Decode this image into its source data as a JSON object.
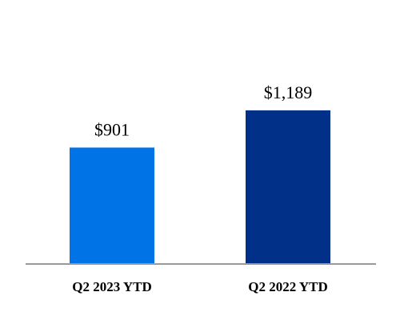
{
  "chart_data": {
    "type": "bar",
    "title": "",
    "xlabel": "",
    "ylabel": "",
    "categories": [
      "Q2 2023 YTD",
      "Q2 2022 YTD"
    ],
    "values": [
      901,
      1189
    ],
    "value_labels": [
      "$901",
      "$1,189"
    ],
    "colors": [
      "#0073E6",
      "#003087"
    ],
    "ylim": [
      0,
      1300
    ],
    "grid": false,
    "legend": "none"
  }
}
